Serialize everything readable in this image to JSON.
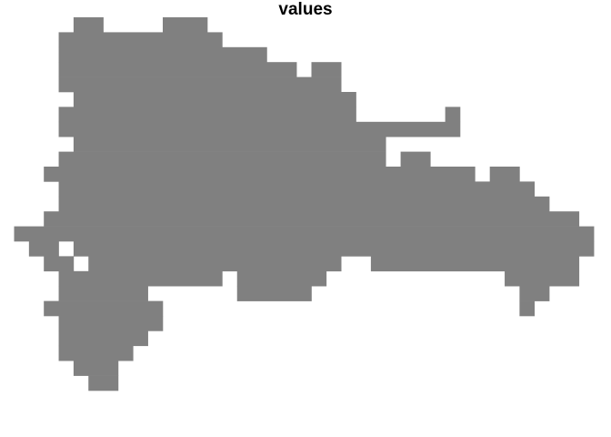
{
  "title": "values"
}
